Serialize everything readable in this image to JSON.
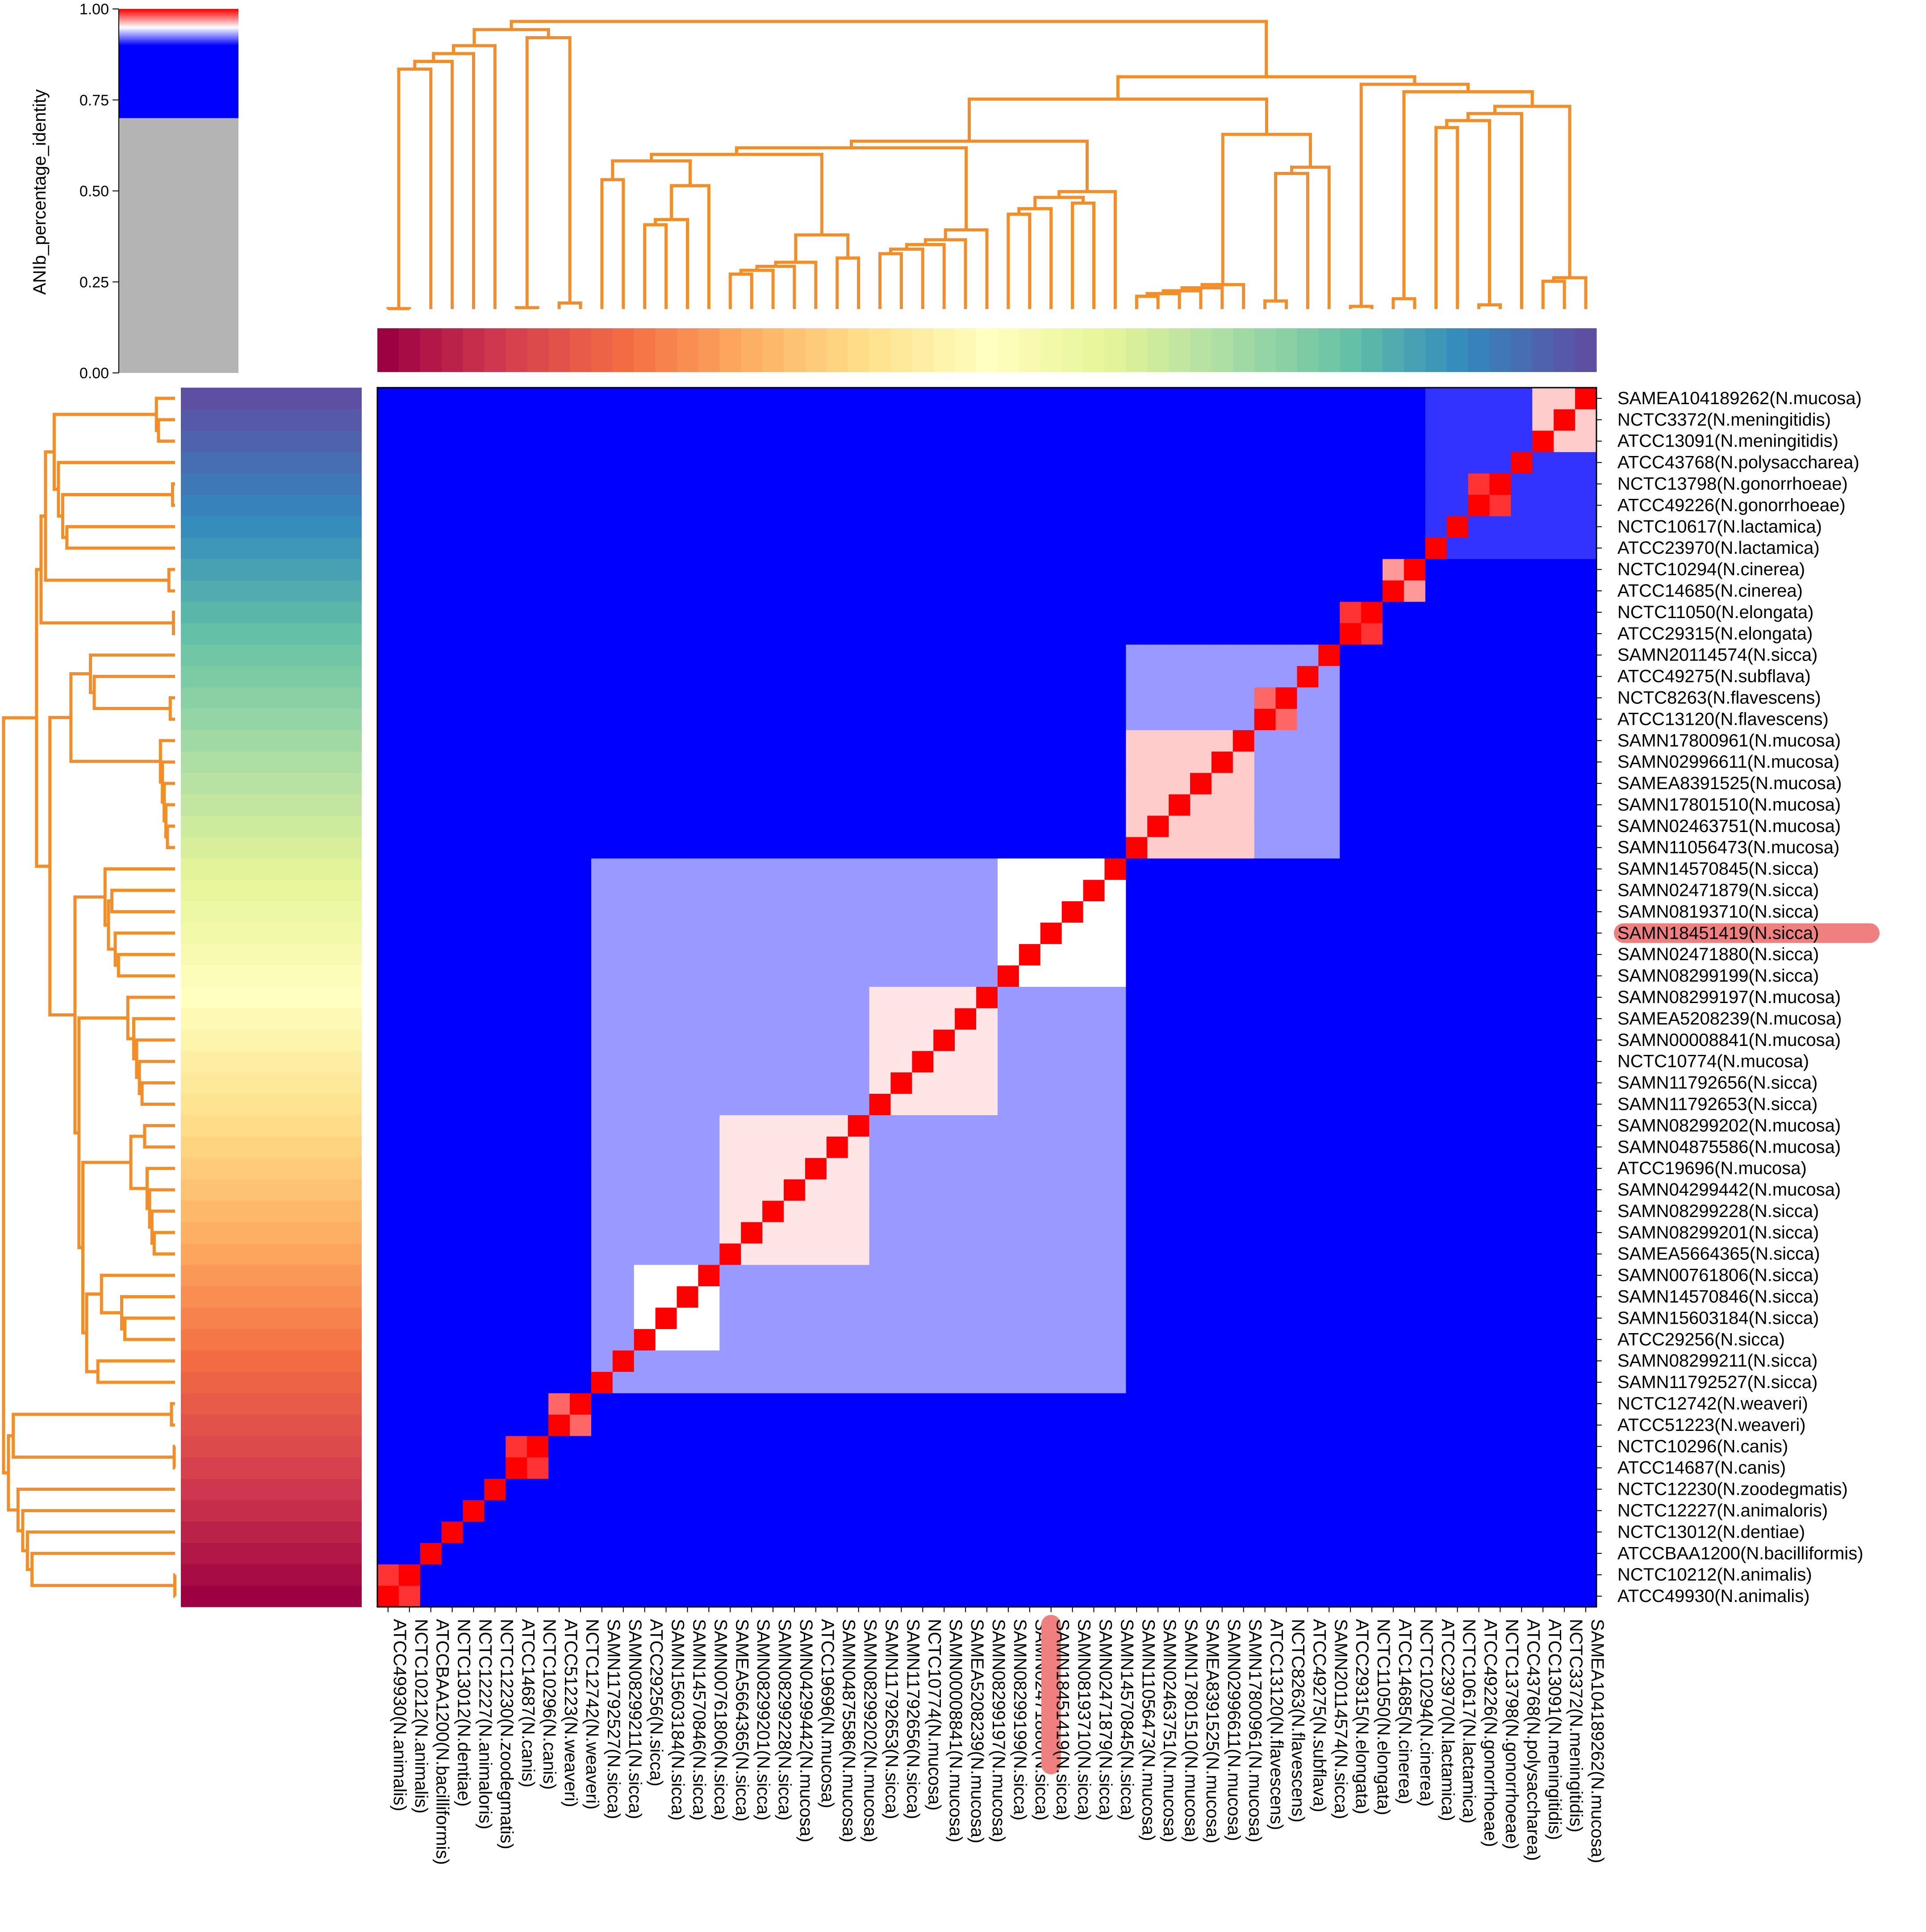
{
  "chart_data": {
    "type": "heatmap",
    "title": "",
    "colorbar": {
      "label": "ANIb_percentage_identity",
      "ticks": [
        "0.00",
        "0.25",
        "0.50",
        "0.75",
        "1.00"
      ],
      "tick_values": [
        0.0,
        0.25,
        0.5,
        0.75,
        1.0
      ],
      "segments": [
        {
          "from": 0.0,
          "to": 0.7,
          "color": "#b4b4b4"
        },
        {
          "from": 0.7,
          "to": 0.9,
          "color": "#0000ff"
        },
        {
          "from": 0.9,
          "to": 0.95,
          "color": "#ffffff"
        },
        {
          "from": 0.95,
          "to": 1.0,
          "color": "#ff0000"
        }
      ]
    },
    "matrix_colors": {
      "low": "#0000ff",
      "mid": "#ffffff",
      "high": "#ff0000"
    },
    "dendrogram_color": "#f28d28",
    "highlight_label": "SAMN18451419(N.sicca)",
    "highlight_color": "#f08080",
    "labels": [
      "ATCC49930(N.animalis)",
      "NCTC10212(N.animalis)",
      "ATCCBAA1200(N.bacilliformis)",
      "NCTC13012(N.dentiae)",
      "NCTC12227(N.animaloris)",
      "NCTC12230(N.zoodegmatis)",
      "ATCC14687(N.canis)",
      "NCTC10296(N.canis)",
      "ATCC51223(N.weaveri)",
      "NCTC12742(N.weaveri)",
      "SAMN11792527(N.sicca)",
      "SAMN08299211(N.sicca)",
      "ATCC29256(N.sicca)",
      "SAMN15603184(N.sicca)",
      "SAMN14570846(N.sicca)",
      "SAMN00761806(N.sicca)",
      "SAMEA5664365(N.sicca)",
      "SAMN08299201(N.sicca)",
      "SAMN08299228(N.sicca)",
      "SAMN04299442(N.mucosa)",
      "ATCC19696(N.mucosa)",
      "SAMN04875586(N.mucosa)",
      "SAMN08299202(N.mucosa)",
      "SAMN11792653(N.sicca)",
      "SAMN11792656(N.sicca)",
      "NCTC10774(N.mucosa)",
      "SAMN00008841(N.mucosa)",
      "SAMEA5208239(N.mucosa)",
      "SAMN08299197(N.mucosa)",
      "SAMN08299199(N.sicca)",
      "SAMN02471880(N.sicca)",
      "SAMN18451419(N.sicca)",
      "SAMN08193710(N.sicca)",
      "SAMN02471879(N.sicca)",
      "SAMN14570845(N.sicca)",
      "SAMN11056473(N.mucosa)",
      "SAMN02463751(N.mucosa)",
      "SAMN17801510(N.mucosa)",
      "SAMEA8391525(N.mucosa)",
      "SAMN02996611(N.mucosa)",
      "SAMN17800961(N.mucosa)",
      "ATCC13120(N.flavescens)",
      "NCTC8263(N.flavescens)",
      "ATCC49275(N.subflava)",
      "SAMN20114574(N.sicca)",
      "ATCC29315(N.elongata)",
      "NCTC11050(N.elongata)",
      "ATCC14685(N.cinerea)",
      "NCTC10294(N.cinerea)",
      "ATCC23970(N.lactamica)",
      "NCTC10617(N.lactamica)",
      "ATCC49226(N.gonorrhoeae)",
      "NCTC13798(N.gonorrhoeae)",
      "ATCC43768(N.polysaccharea)",
      "ATCC13091(N.meningitidis)",
      "NCTC3372(N.meningitidis)",
      "SAMEA104189262(N.mucosa)"
    ],
    "clusters": [
      {
        "members": [
          0,
          1
        ],
        "identity": 0.99
      },
      {
        "members": [
          2
        ],
        "identity": 1.0
      },
      {
        "members": [
          3
        ],
        "identity": 1.0
      },
      {
        "members": [
          4
        ],
        "identity": 1.0
      },
      {
        "members": [
          5
        ],
        "identity": 1.0
      },
      {
        "members": [
          6,
          7
        ],
        "identity": 0.99
      },
      {
        "members": [
          8,
          9
        ],
        "identity": 0.98
      },
      {
        "members": [
          10,
          11,
          12,
          13,
          14,
          15,
          16,
          17,
          18,
          19,
          20,
          21,
          22,
          23,
          24,
          25,
          26,
          27,
          28,
          29,
          30,
          31,
          32,
          33,
          34
        ],
        "identity": 0.93
      },
      {
        "members": [
          12,
          13,
          14,
          15
        ],
        "identity": 0.95
      },
      {
        "members": [
          16,
          17,
          18,
          19,
          20,
          21,
          22
        ],
        "identity": 0.955
      },
      {
        "members": [
          23,
          24,
          25,
          26,
          27,
          28
        ],
        "identity": 0.955
      },
      {
        "members": [
          29,
          30,
          31,
          32,
          33,
          34
        ],
        "identity": 0.95
      },
      {
        "members": [
          35,
          36,
          37,
          38,
          39,
          40,
          41,
          42,
          43,
          44
        ],
        "identity": 0.93
      },
      {
        "members": [
          35,
          36,
          37,
          38,
          39,
          40
        ],
        "identity": 0.96
      },
      {
        "members": [
          41,
          42
        ],
        "identity": 0.98
      },
      {
        "members": [
          45,
          46
        ],
        "identity": 0.99
      },
      {
        "members": [
          47,
          48
        ],
        "identity": 0.97
      },
      {
        "members": [
          49,
          50,
          51,
          52,
          53,
          54,
          55,
          56
        ],
        "identity": 0.91
      },
      {
        "members": [
          51,
          52
        ],
        "identity": 0.99
      },
      {
        "members": [
          54,
          55,
          56
        ],
        "identity": 0.96
      }
    ]
  }
}
